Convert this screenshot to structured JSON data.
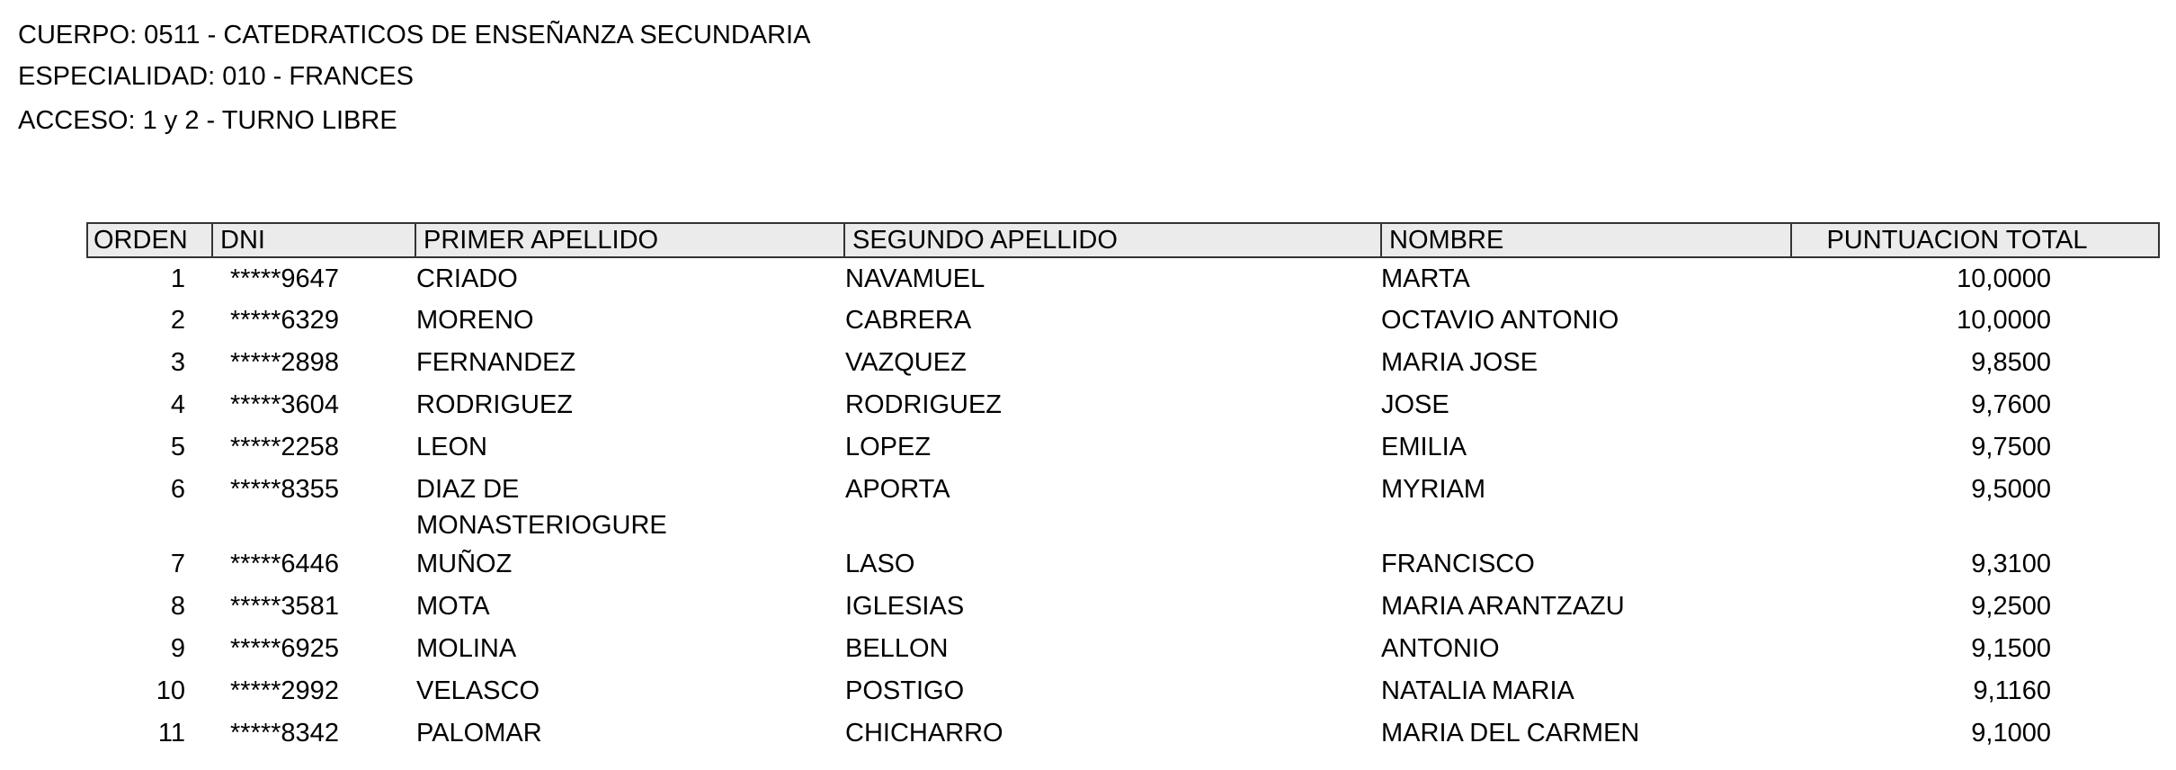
{
  "header": {
    "cuerpo": "CUERPO: 0511 - CATEDRATICOS DE ENSEÑANZA SECUNDARIA",
    "especialidad": "ESPECIALIDAD: 010 - FRANCES",
    "acceso": "ACCESO: 1 y 2 - TURNO LIBRE"
  },
  "table": {
    "columns": [
      "ORDEN",
      "DNI",
      "PRIMER APELLIDO",
      "SEGUNDO APELLIDO",
      "NOMBRE",
      "PUNTUACION TOTAL"
    ],
    "rows": [
      {
        "orden": "1",
        "dni": "*****9647",
        "primer": "CRIADO",
        "segundo": "NAVAMUEL",
        "nombre": "MARTA",
        "puntuacion": "10,0000"
      },
      {
        "orden": "2",
        "dni": "*****6329",
        "primer": "MORENO",
        "segundo": "CABRERA",
        "nombre": "OCTAVIO ANTONIO",
        "puntuacion": "10,0000"
      },
      {
        "orden": "3",
        "dni": "*****2898",
        "primer": "FERNANDEZ",
        "segundo": "VAZQUEZ",
        "nombre": "MARIA JOSE",
        "puntuacion": "9,8500"
      },
      {
        "orden": "4",
        "dni": "*****3604",
        "primer": "RODRIGUEZ",
        "segundo": "RODRIGUEZ",
        "nombre": "JOSE",
        "puntuacion": "9,7600"
      },
      {
        "orden": "5",
        "dni": "*****2258",
        "primer": "LEON",
        "segundo": "LOPEZ",
        "nombre": "EMILIA",
        "puntuacion": "9,7500"
      },
      {
        "orden": "6",
        "dni": "*****8355",
        "primer": "DIAZ DE MONASTERIOGURE",
        "segundo": "APORTA",
        "nombre": "MYRIAM",
        "puntuacion": "9,5000"
      },
      {
        "orden": "7",
        "dni": "*****6446",
        "primer": "MUÑOZ",
        "segundo": "LASO",
        "nombre": "FRANCISCO",
        "puntuacion": "9,3100"
      },
      {
        "orden": "8",
        "dni": "*****3581",
        "primer": "MOTA",
        "segundo": "IGLESIAS",
        "nombre": "MARIA ARANTZAZU",
        "puntuacion": "9,2500"
      },
      {
        "orden": "9",
        "dni": "*****6925",
        "primer": "MOLINA",
        "segundo": "BELLON",
        "nombre": "ANTONIO",
        "puntuacion": "9,1500"
      },
      {
        "orden": "10",
        "dni": "*****2992",
        "primer": "VELASCO",
        "segundo": "POSTIGO",
        "nombre": "NATALIA MARIA",
        "puntuacion": "9,1160"
      },
      {
        "orden": "11",
        "dni": "*****8342",
        "primer": "PALOMAR",
        "segundo": "CHICHARRO",
        "nombre": "MARIA DEL CARMEN",
        "puntuacion": "9,1000"
      }
    ]
  }
}
